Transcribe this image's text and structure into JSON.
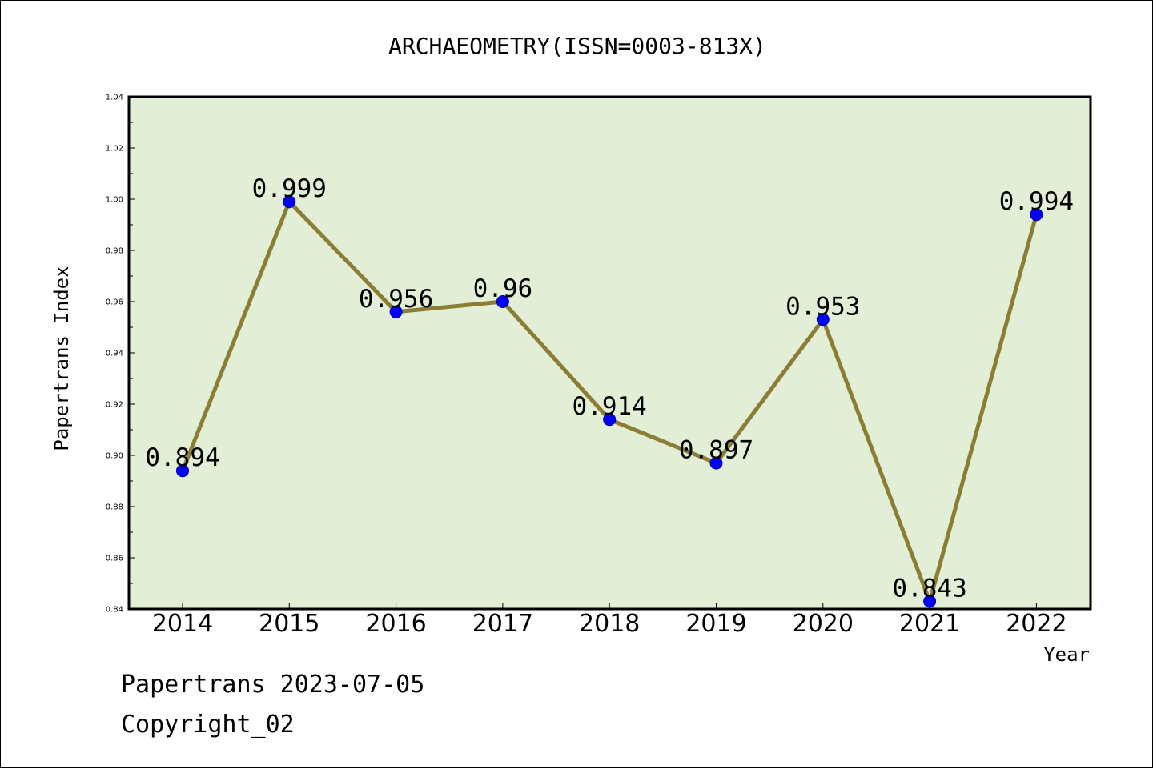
{
  "chart_data": {
    "type": "line",
    "title": "ARCHAEOMETRY(ISSN=0003-813X)",
    "xlabel": "Year",
    "ylabel": "Papertrans Index",
    "categories": [
      "2014",
      "2015",
      "2016",
      "2017",
      "2018",
      "2019",
      "2020",
      "2021",
      "2022"
    ],
    "series": [
      {
        "values": [
          0.894,
          0.999,
          0.956,
          0.96,
          0.914,
          0.897,
          0.953,
          0.843,
          0.994
        ]
      }
    ],
    "data_labels": [
      "0.894",
      "0.999",
      "0.956",
      "0.96",
      "0.914",
      "0.897",
      "0.953",
      "0.843",
      "0.994"
    ],
    "ylim": [
      0.84,
      1.04
    ],
    "yticks": [
      "0.84",
      "0.86",
      "0.88",
      "0.90",
      "0.92",
      "0.94",
      "0.96",
      "0.98",
      "1.00",
      "1.02",
      "1.04"
    ],
    "grid": false,
    "colors": {
      "plot_background": "#e2efd6",
      "line": "#8c7d36",
      "marker": "#0000ff",
      "marker_edge": "#00008b"
    }
  },
  "footer": {
    "line1": "Papertrans 2023-07-05",
    "line2": "Copyright_02"
  }
}
